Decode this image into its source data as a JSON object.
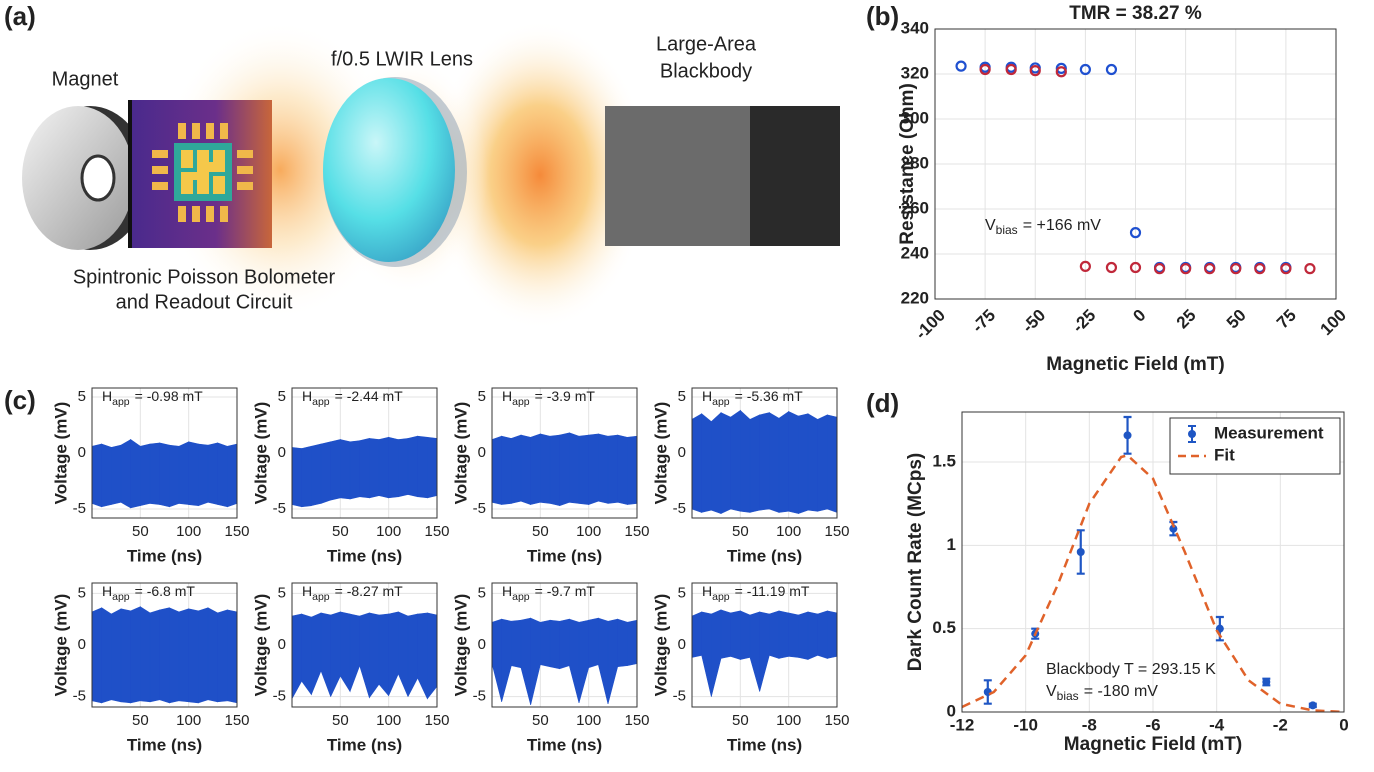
{
  "diagram": {
    "panel_label": "(a)",
    "magnet": "Magnet",
    "lens": "f/0.5 LWIR Lens",
    "blackbody": [
      "Large-Area",
      "Blackbody"
    ],
    "detector": [
      "Spintronic Poisson Bolometer",
      "and Readout Circuit"
    ]
  },
  "chart_data": [
    {
      "type": "scatter",
      "panel_label": "(b)",
      "title": "TMR = 38.27 %",
      "xlabel": "Magnetic Field (mT)",
      "ylabel": "Resistance (Ohm)",
      "annotations": [
        {
          "symbol": "V",
          "subscript": "bias",
          "text": "= +166 mV"
        }
      ],
      "xlim": [
        -100,
        100
      ],
      "xticks": [
        -100,
        -75,
        -50,
        -25,
        0,
        25,
        50,
        75,
        100
      ],
      "ylim": [
        220,
        340
      ],
      "yticks": [
        220,
        240,
        260,
        280,
        300,
        320,
        340
      ],
      "grid": true,
      "series": [
        {
          "color": "#1f50d0",
          "x": [
            -87,
            -75,
            -62,
            -50,
            -37,
            -25,
            -12,
            0,
            12,
            25,
            37,
            50,
            62,
            75
          ],
          "values": [
            323.5,
            323,
            323,
            322.7,
            322.5,
            322,
            322,
            249.5,
            234,
            234,
            234,
            234,
            234,
            234
          ]
        },
        {
          "color": "#c0283a",
          "x": [
            -75,
            -62,
            -50,
            -37,
            -25,
            -12,
            0,
            12,
            25,
            37,
            50,
            62,
            75,
            87
          ],
          "values": [
            322,
            322,
            321.5,
            321,
            234.5,
            234,
            234,
            233.5,
            233.5,
            233.5,
            233.5,
            233.5,
            233.5,
            233.5
          ]
        }
      ]
    },
    {
      "type": "band",
      "panel_label": "(c)",
      "xlabel": "Time (ns)",
      "ylabel": "Voltage (mV)",
      "annotations": [
        {
          "symbol": "H",
          "subscript": "app",
          "text": "= -0.98 mT"
        }
      ],
      "xlim": [
        0,
        150
      ],
      "xticks": [
        50,
        100,
        150
      ],
      "ylim": [
        -5.8,
        5.8
      ],
      "yticks": [
        -5,
        0,
        5
      ],
      "grid": true,
      "color": "#1f50c8",
      "x": [
        0,
        10,
        20,
        30,
        40,
        50,
        60,
        70,
        80,
        90,
        100,
        110,
        120,
        130,
        140,
        150
      ],
      "upper": [
        0.6,
        0.8,
        0.5,
        0.7,
        1.2,
        0.6,
        0.8,
        0.9,
        0.7,
        0.6,
        1.0,
        0.8,
        0.7,
        0.9,
        0.6,
        0.8
      ],
      "lower": [
        -4.5,
        -4.8,
        -4.6,
        -4.4,
        -4.9,
        -4.7,
        -4.5,
        -4.6,
        -4.8,
        -4.5,
        -4.6,
        -4.7,
        -4.4,
        -4.6,
        -4.8,
        -4.5
      ]
    },
    {
      "type": "band",
      "xlabel": "Time (ns)",
      "ylabel": "Voltage (mV)",
      "annotations": [
        {
          "symbol": "H",
          "subscript": "app",
          "text": "= -2.44 mT"
        }
      ],
      "xlim": [
        0,
        150
      ],
      "xticks": [
        50,
        100,
        150
      ],
      "ylim": [
        -5.8,
        5.8
      ],
      "yticks": [
        -5,
        0,
        5
      ],
      "grid": true,
      "color": "#1f50c8",
      "x": [
        0,
        10,
        20,
        30,
        40,
        50,
        60,
        70,
        80,
        90,
        100,
        110,
        120,
        130,
        140,
        150
      ],
      "upper": [
        0.5,
        0.4,
        0.6,
        0.8,
        1.0,
        1.2,
        1.0,
        1.1,
        1.3,
        1.2,
        1.4,
        1.2,
        1.3,
        1.5,
        1.4,
        1.3
      ],
      "lower": [
        -4.6,
        -4.8,
        -4.7,
        -4.5,
        -4.2,
        -4.0,
        -4.1,
        -3.9,
        -4.0,
        -3.8,
        -4.0,
        -3.9,
        -3.7,
        -3.9,
        -4.0,
        -3.8
      ]
    },
    {
      "type": "band",
      "xlabel": "Time (ns)",
      "ylabel": "Voltage (mV)",
      "annotations": [
        {
          "symbol": "H",
          "subscript": "app",
          "text": "= -3.9 mT"
        }
      ],
      "xlim": [
        0,
        150
      ],
      "xticks": [
        50,
        100,
        150
      ],
      "ylim": [
        -5.8,
        5.8
      ],
      "yticks": [
        -5,
        0,
        5
      ],
      "grid": true,
      "color": "#1f50c8",
      "x": [
        0,
        10,
        20,
        30,
        40,
        50,
        60,
        70,
        80,
        90,
        100,
        110,
        120,
        130,
        140,
        150
      ],
      "upper": [
        1.2,
        1.5,
        1.3,
        1.6,
        1.4,
        1.7,
        1.5,
        1.6,
        1.8,
        1.5,
        1.6,
        1.7,
        1.5,
        1.6,
        1.4,
        1.5
      ],
      "lower": [
        -4.4,
        -4.6,
        -4.5,
        -4.3,
        -4.6,
        -4.4,
        -4.5,
        -4.7,
        -4.4,
        -4.5,
        -4.6,
        -4.3,
        -4.5,
        -4.4,
        -4.6,
        -4.5
      ]
    },
    {
      "type": "band",
      "xlabel": "Time (ns)",
      "ylabel": "Voltage (mV)",
      "annotations": [
        {
          "symbol": "H",
          "subscript": "app",
          "text": "= -5.36 mT"
        }
      ],
      "xlim": [
        0,
        150
      ],
      "xticks": [
        50,
        100,
        150
      ],
      "ylim": [
        -5.8,
        5.8
      ],
      "yticks": [
        -5,
        0,
        5
      ],
      "grid": true,
      "color": "#1f50c8",
      "x": [
        0,
        10,
        20,
        30,
        40,
        50,
        60,
        70,
        80,
        90,
        100,
        110,
        120,
        130,
        140,
        150
      ],
      "upper": [
        3.0,
        3.5,
        2.8,
        3.6,
        3.2,
        3.8,
        3.0,
        3.4,
        3.6,
        3.1,
        3.7,
        3.3,
        3.5,
        3.0,
        3.4,
        3.2
      ],
      "lower": [
        -5.0,
        -5.3,
        -5.1,
        -5.4,
        -5.0,
        -5.2,
        -5.3,
        -5.1,
        -5.0,
        -5.3,
        -5.2,
        -5.4,
        -5.1,
        -5.2,
        -5.0,
        -5.3
      ]
    },
    {
      "type": "band",
      "xlabel": "Time (ns)",
      "ylabel": "Voltage (mV)",
      "annotations": [
        {
          "symbol": "H",
          "subscript": "app",
          "text": "= -6.8 mT"
        }
      ],
      "xlim": [
        0,
        150
      ],
      "xticks": [
        50,
        100,
        150
      ],
      "ylim": [
        -6,
        6
      ],
      "yticks": [
        -5,
        0,
        5
      ],
      "grid": true,
      "color": "#1f50c8",
      "x": [
        0,
        10,
        20,
        30,
        40,
        50,
        60,
        70,
        80,
        90,
        100,
        110,
        120,
        130,
        140,
        150
      ],
      "upper": [
        3.2,
        3.6,
        3.0,
        3.5,
        3.3,
        3.7,
        3.1,
        3.4,
        3.6,
        3.2,
        3.5,
        3.3,
        3.6,
        3.1,
        3.4,
        3.2
      ],
      "lower": [
        -5.4,
        -5.6,
        -5.3,
        -5.5,
        -5.6,
        -5.4,
        -5.5,
        -5.3,
        -5.6,
        -5.4,
        -5.5,
        -5.6,
        -5.3,
        -5.5,
        -5.4,
        -5.6
      ]
    },
    {
      "type": "band",
      "xlabel": "Time (ns)",
      "ylabel": "Voltage (mV)",
      "annotations": [
        {
          "symbol": "H",
          "subscript": "app",
          "text": "= -8.27 mT"
        }
      ],
      "xlim": [
        0,
        150
      ],
      "xticks": [
        50,
        100,
        150
      ],
      "ylim": [
        -6,
        6
      ],
      "yticks": [
        -5,
        0,
        5
      ],
      "grid": true,
      "color": "#1f50c8",
      "x": [
        0,
        10,
        20,
        30,
        40,
        50,
        60,
        70,
        80,
        90,
        100,
        110,
        120,
        130,
        140,
        150
      ],
      "upper": [
        2.8,
        3.0,
        2.7,
        3.1,
        2.9,
        3.2,
        3.0,
        2.8,
        3.1,
        2.9,
        3.0,
        3.2,
        2.8,
        3.0,
        3.1,
        2.9
      ],
      "lower": [
        -5.2,
        -3.5,
        -4.8,
        -2.5,
        -5.0,
        -3.0,
        -4.5,
        -2.0,
        -5.1,
        -3.8,
        -4.9,
        -2.8,
        -5.0,
        -3.2,
        -5.2,
        -4.0
      ]
    },
    {
      "type": "band",
      "xlabel": "Time (ns)",
      "ylabel": "Voltage (mV)",
      "annotations": [
        {
          "symbol": "H",
          "subscript": "app",
          "text": "= -9.7 mT"
        }
      ],
      "xlim": [
        0,
        150
      ],
      "xticks": [
        50,
        100,
        150
      ],
      "ylim": [
        -6,
        6
      ],
      "yticks": [
        -5,
        0,
        5
      ],
      "grid": true,
      "color": "#1f50c8",
      "x": [
        0,
        10,
        20,
        30,
        40,
        50,
        60,
        70,
        80,
        90,
        100,
        110,
        120,
        130,
        140,
        150
      ],
      "upper": [
        2.2,
        2.5,
        2.3,
        2.4,
        2.6,
        2.2,
        2.4,
        2.3,
        2.5,
        2.2,
        2.4,
        2.6,
        2.3,
        2.5,
        2.2,
        2.4
      ],
      "lower": [
        -1.8,
        -5.5,
        -2.0,
        -2.2,
        -5.8,
        -1.9,
        -2.1,
        -2.3,
        -2.0,
        -5.6,
        -2.2,
        -1.9,
        -5.7,
        -2.1,
        -2.0,
        -1.8
      ]
    },
    {
      "type": "band",
      "xlabel": "Time (ns)",
      "ylabel": "Voltage (mV)",
      "annotations": [
        {
          "symbol": "H",
          "subscript": "app",
          "text": "= -11.19 mT"
        }
      ],
      "xlim": [
        0,
        150
      ],
      "xticks": [
        50,
        100,
        150
      ],
      "ylim": [
        -6,
        6
      ],
      "yticks": [
        -5,
        0,
        5
      ],
      "grid": true,
      "color": "#1f50c8",
      "x": [
        0,
        10,
        20,
        30,
        40,
        50,
        60,
        70,
        80,
        90,
        100,
        110,
        120,
        130,
        140,
        150
      ],
      "upper": [
        2.8,
        3.2,
        3.0,
        3.4,
        3.1,
        3.3,
        2.9,
        3.2,
        3.0,
        3.3,
        3.1,
        2.9,
        3.2,
        3.0,
        3.3,
        3.1
      ],
      "lower": [
        -1.2,
        -1.0,
        -5.0,
        -1.3,
        -1.1,
        -1.4,
        -1.2,
        -4.5,
        -1.0,
        -1.3,
        -1.1,
        -1.2,
        -1.4,
        -1.0,
        -1.3,
        -1.1
      ]
    },
    {
      "type": "errorbar",
      "panel_label": "(d)",
      "xlabel": "Magnetic Field (mT)",
      "ylabel": "Dark Count Rate (MCps)",
      "annotations": [
        {
          "text": "Blackbody T = 293.15 K"
        },
        {
          "symbol": "V",
          "subscript": "bias",
          "text": "= -180 mV"
        }
      ],
      "xlim": [
        -12,
        0
      ],
      "xticks": [
        -12,
        -10,
        -8,
        -6,
        -4,
        -2,
        0
      ],
      "ylim": [
        0,
        1.8
      ],
      "yticks": [
        0,
        0.5,
        1,
        1.5
      ],
      "grid": true,
      "legend": "upper right",
      "series": [
        {
          "name": "Measurement",
          "type": "errorbar",
          "color": "#1f56c4",
          "x": [
            -11.19,
            -9.7,
            -8.27,
            -6.8,
            -5.36,
            -3.9,
            -2.44,
            -0.98
          ],
          "values": [
            0.12,
            0.47,
            0.96,
            1.66,
            1.1,
            0.5,
            0.18,
            0.04
          ],
          "errors": [
            0.07,
            0.03,
            0.13,
            0.11,
            0.04,
            0.07,
            0.02,
            0.01
          ]
        },
        {
          "name": "Fit",
          "type": "line",
          "dash": true,
          "color": "#e0622a",
          "x": [
            -12,
            -11,
            -10,
            -9,
            -8,
            -7,
            -6.8,
            -6,
            -5,
            -4,
            -3,
            -2,
            -1,
            0
          ],
          "values": [
            0.03,
            0.12,
            0.34,
            0.76,
            1.25,
            1.53,
            1.54,
            1.4,
            0.96,
            0.49,
            0.19,
            0.05,
            0.01,
            0
          ]
        }
      ]
    }
  ]
}
